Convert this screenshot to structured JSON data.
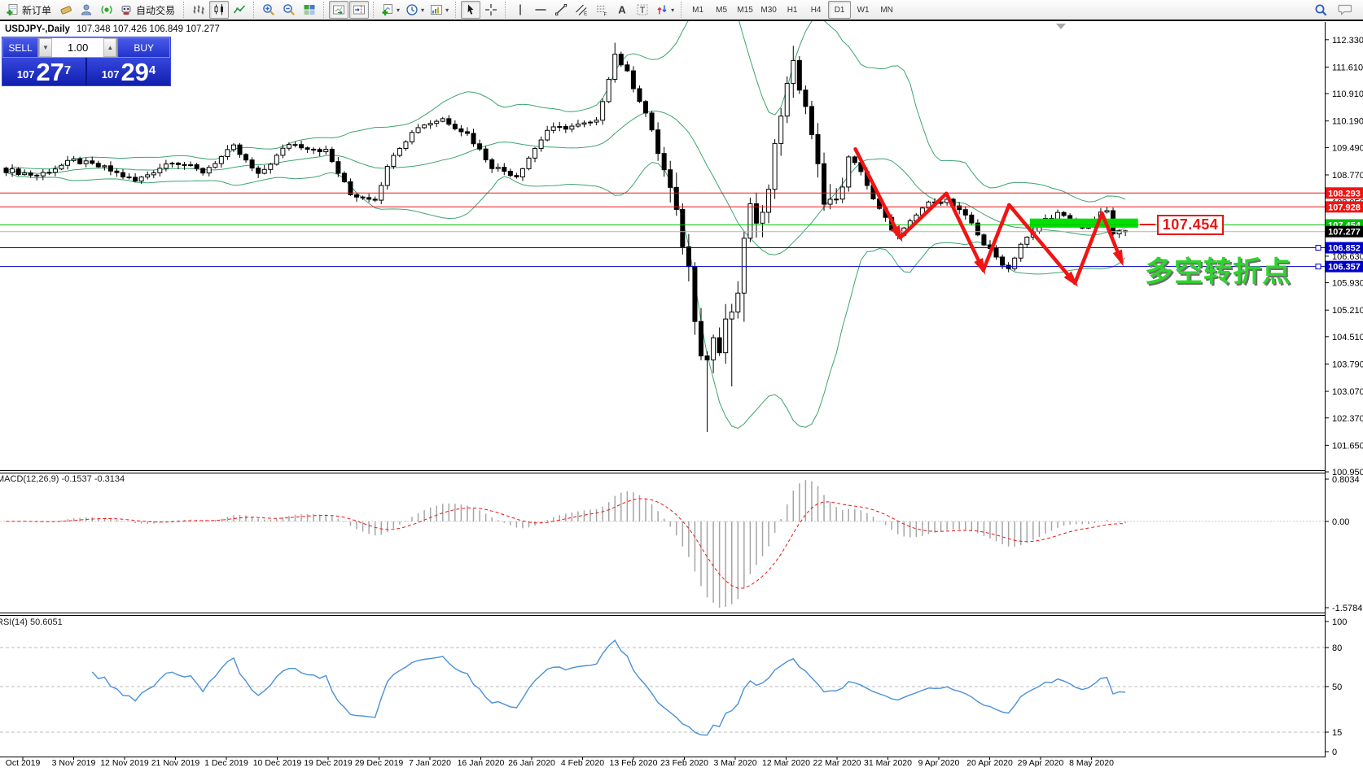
{
  "toolbar": {
    "new_order_label": "新订单",
    "autotrading_label": "自动交易",
    "timeframes": [
      {
        "label": "M1",
        "active": false
      },
      {
        "label": "M5",
        "active": false
      },
      {
        "label": "M15",
        "active": false
      },
      {
        "label": "M30",
        "active": false
      },
      {
        "label": "H1",
        "active": false
      },
      {
        "label": "H4",
        "active": false
      },
      {
        "label": "D1",
        "active": true
      },
      {
        "label": "W1",
        "active": false
      },
      {
        "label": "MN",
        "active": false
      }
    ]
  },
  "trade_panel": {
    "sell_label": "SELL",
    "buy_label": "BUY",
    "volume": "1.00",
    "sell_price": {
      "prefix": "107",
      "big": "27",
      "sup": "7"
    },
    "buy_price": {
      "prefix": "107",
      "big": "29",
      "sup": "4"
    }
  },
  "chart": {
    "title_symbol": "USDJPY-,Daily",
    "title_ohlc": "107.348 107.426 106.849 107.277",
    "price_callout": "107.454",
    "trend_annotation": "多空转折点"
  },
  "chart_data": {
    "type": "candlestick",
    "symbol": "USDJPY-",
    "timeframe": "Daily",
    "ohlc_display": {
      "open": 107.348,
      "high": 107.426,
      "low": 106.849,
      "close": 107.277
    },
    "colors": {
      "bull": "#ffffff",
      "bear": "#000000",
      "wick": "#000000",
      "bollinger": "#3da46f",
      "red_line": "#f01414",
      "green_line": "#00c000",
      "current_line": "#b4b4b4",
      "blue_line": "#0000c8",
      "zone": "#00e000",
      "zigzag": "#f01414",
      "macd_hist": "#a6a6a6",
      "macd_signal": "#f01414",
      "rsi_line": "#4a90d9",
      "label_text": "#ffffff",
      "current_label_bg": "#000000"
    },
    "y_axis_ticks": [
      112.33,
      111.61,
      110.91,
      110.19,
      109.49,
      108.77,
      108.05,
      106.63,
      105.93,
      105.21,
      104.51,
      103.79,
      103.07,
      102.37,
      101.65,
      100.95
    ],
    "price_lines": [
      {
        "value": 108.293,
        "color": "#f01414",
        "label_bg": "#f01414",
        "marker": false
      },
      {
        "value": 107.928,
        "color": "#f01414",
        "label_bg": "#f01414",
        "marker": false
      },
      {
        "value": 107.454,
        "color": "#00c000",
        "label_bg": "#00c000",
        "marker": false
      },
      {
        "value": 107.277,
        "color": "#b4b4b4",
        "label_bg": "#000000",
        "marker": false
      },
      {
        "value": 106.852,
        "color": "#0000c8",
        "label_bg": "#0000c8",
        "marker": true
      },
      {
        "value": 106.357,
        "color": "#0000c8",
        "label_bg": "#0000c8",
        "marker": true
      }
    ],
    "highlight_zone": {
      "bar_start": 166.8,
      "bar_end": 184.4,
      "price_top": 107.62,
      "price_bottom": 107.38
    },
    "zigzag_points": [
      [
        138.1,
        109.45
      ],
      [
        145.4,
        107.12
      ],
      [
        152.9,
        108.28
      ],
      [
        158.9,
        106.26
      ],
      [
        163.1,
        107.98
      ],
      [
        173.8,
        105.92
      ],
      [
        178.2,
        107.76
      ],
      [
        181.4,
        106.48
      ]
    ],
    "zigzag_arrowheads": [
      1,
      3,
      5,
      7
    ],
    "bars_total": 183,
    "close_anchors": [
      [
        0,
        108.9
      ],
      [
        5,
        108.75
      ],
      [
        11,
        109.15
      ],
      [
        16,
        108.95
      ],
      [
        21,
        108.6
      ],
      [
        27,
        109.15
      ],
      [
        32,
        108.85
      ],
      [
        37,
        109.5
      ],
      [
        41,
        108.75
      ],
      [
        46,
        109.6
      ],
      [
        52,
        109.4
      ],
      [
        56,
        108.25
      ],
      [
        60,
        108.15
      ],
      [
        63,
        109.35
      ],
      [
        67,
        110.05
      ],
      [
        71,
        110.25
      ],
      [
        75,
        109.85
      ],
      [
        79,
        109.0
      ],
      [
        83,
        108.75
      ],
      [
        88,
        109.95
      ],
      [
        92,
        110.05
      ],
      [
        96,
        110.15
      ],
      [
        99,
        111.95
      ],
      [
        101,
        111.45
      ],
      [
        104,
        110.4
      ],
      [
        106,
        109.4
      ],
      [
        108,
        108.35
      ],
      [
        110,
        107.0
      ],
      [
        111,
        106.3
      ],
      [
        112,
        105.1
      ],
      [
        113,
        104.2
      ],
      [
        114,
        103.9
      ],
      [
        115,
        104.5
      ],
      [
        116,
        104.1
      ],
      [
        117,
        104.8
      ],
      [
        118,
        105.2
      ],
      [
        119,
        105.45
      ],
      [
        120,
        107.2
      ],
      [
        121,
        107.9
      ],
      [
        122,
        107.3
      ],
      [
        124,
        108.6
      ],
      [
        126,
        110.4
      ],
      [
        127,
        111.3
      ],
      [
        128,
        111.6
      ],
      [
        129,
        111.1
      ],
      [
        130,
        110.6
      ],
      [
        131,
        109.7
      ],
      [
        133,
        108.2
      ],
      [
        135,
        108.0
      ],
      [
        137,
        109.2
      ],
      [
        139,
        108.9
      ],
      [
        141,
        108.1
      ],
      [
        143,
        107.6
      ],
      [
        145,
        107.15
      ],
      [
        147,
        107.5
      ],
      [
        149,
        107.9
      ],
      [
        151,
        108.1
      ],
      [
        153,
        108.1
      ],
      [
        155,
        107.8
      ],
      [
        157,
        107.5
      ],
      [
        159,
        106.95
      ],
      [
        161,
        106.6
      ],
      [
        163,
        106.3
      ],
      [
        165,
        106.95
      ],
      [
        167,
        107.25
      ],
      [
        169,
        107.6
      ],
      [
        171,
        107.75
      ],
      [
        173,
        107.55
      ],
      [
        175,
        107.35
      ],
      [
        177,
        107.6
      ],
      [
        179,
        107.85
      ],
      [
        180,
        107.15
      ],
      [
        181,
        107.3
      ],
      [
        182,
        107.277
      ]
    ],
    "special_wicks": [
      {
        "bar": 114,
        "low": 102.0
      },
      {
        "bar": 118,
        "low": 103.2
      },
      {
        "bar": 120,
        "low": 104.9
      },
      {
        "bar": 99,
        "high": 112.25
      },
      {
        "bar": 128,
        "high": 111.95
      }
    ],
    "macd": {
      "label": "MACD(12,26,9)",
      "values_text": "-0.1537 -0.3134",
      "fast": 12,
      "slow": 26,
      "signal": 9,
      "axis_max": 0.8034,
      "axis_zero": 0.0,
      "axis_min": -1.5784
    },
    "rsi": {
      "label": "RSI(14)",
      "value_text": "50.6051",
      "period": 14,
      "levels": [
        80,
        50,
        15
      ],
      "axis_labels": [
        100,
        80,
        50,
        15,
        0
      ]
    },
    "x_axis_dates": [
      "Oct 2019",
      "3 Nov 2019",
      "12 Nov 2019",
      "21 Nov 2019",
      "1 Dec 2019",
      "10 Dec 2019",
      "19 Dec 2019",
      "29 Dec 2019",
      "7 Jan 2020",
      "16 Jan 2020",
      "26 Jan 2020",
      "4 Feb 2020",
      "13 Feb 2020",
      "23 Feb 2020",
      "3 Mar 2020",
      "12 Mar 2020",
      "22 Mar 2020",
      "31 Mar 2020",
      "9 Apr 2020",
      "20 Apr 2020",
      "29 Apr 2020",
      "8 May 2020"
    ]
  }
}
